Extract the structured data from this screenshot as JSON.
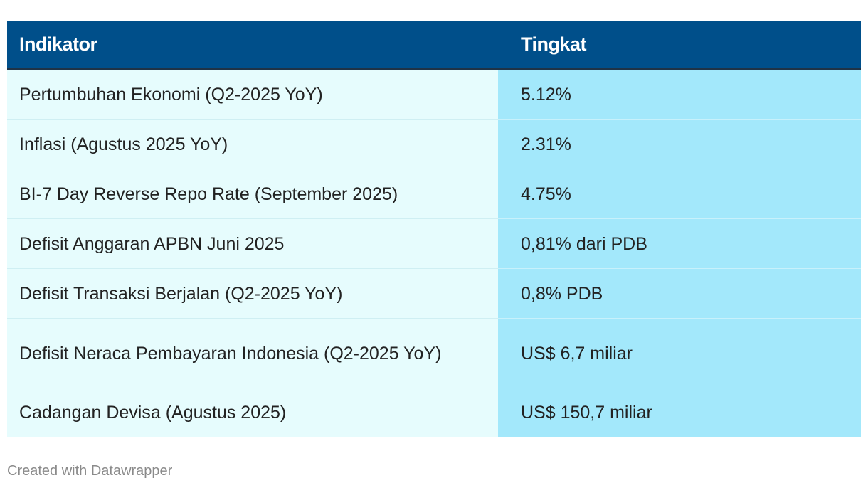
{
  "chart_data": {
    "type": "table",
    "columns": [
      "Indikator",
      "Tingkat"
    ],
    "rows": [
      {
        "indikator": "Pertumbuhan Ekonomi (Q2-2025 YoY)",
        "tingkat": "5.12%"
      },
      {
        "indikator": "Inflasi (Agustus 2025 YoY)",
        "tingkat": "2.31%"
      },
      {
        "indikator": "BI-7 Day Reverse Repo Rate (September 2025)",
        "tingkat": "4.75%"
      },
      {
        "indikator": "Defisit Anggaran APBN Juni 2025",
        "tingkat": "0,81% dari PDB"
      },
      {
        "indikator": "Defisit Transaksi Berjalan (Q2-2025 YoY)",
        "tingkat": "0,8% PDB"
      },
      {
        "indikator": "Defisit Neraca Pembayaran Indonesia (Q2-2025 YoY)",
        "tingkat": "US$ 6,7 miliar"
      },
      {
        "indikator": "Cadangan Devisa (Agustus 2025)",
        "tingkat": "US$ 150,7 miliar"
      }
    ],
    "colors": {
      "header_bg": "#004f8a",
      "col1_bg": "#e6fcfd",
      "col2_bg": "#a3e8fb"
    }
  },
  "footer": {
    "credit": "Created with Datawrapper"
  }
}
